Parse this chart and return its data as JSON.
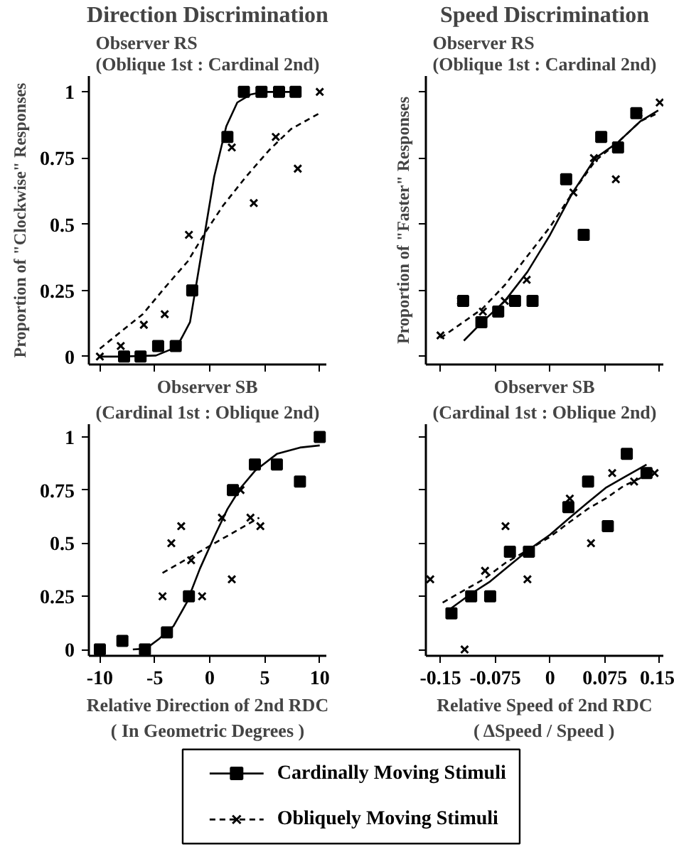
{
  "chart_data": [
    {
      "type": "scatter",
      "title": "Direction Discrimination",
      "subtitle": "Observer RS (Oblique 1st : Cardinal 2nd)",
      "ylabel": "Proportion of \"Clockwise\" Responses",
      "xlim": [
        -11,
        10.6
      ],
      "ylim": [
        -0.03,
        1.06
      ],
      "xticks": [
        -10,
        -5,
        0,
        5,
        10
      ],
      "yticks": [
        0,
        0.25,
        0.5,
        0.75,
        1
      ],
      "tick_labels": "y",
      "series": [
        {
          "marker": "square",
          "color": "#000000",
          "x": [
            -7.8,
            -6.3,
            -4.7,
            -3.1,
            -1.6,
            1.6,
            3.1,
            4.7,
            6.3,
            7.8
          ],
          "values": [
            0,
            0,
            0.04,
            0.04,
            0.25,
            0.83,
            1,
            1,
            1,
            1
          ]
        },
        {
          "marker": "cross",
          "color": "#000000",
          "x": [
            -10,
            -8.1,
            -6,
            -4.1,
            -1.9,
            2,
            4,
            6,
            8,
            10
          ],
          "values": [
            0,
            0.04,
            0.12,
            0.16,
            0.46,
            0.79,
            0.58,
            0.83,
            0.71,
            1
          ]
        },
        {
          "type": "line",
          "line_style": "solid",
          "color": "#000000",
          "x": [
            -10,
            -8.2,
            -4.9,
            -3.0,
            -1.8,
            -0.8,
            0.4,
            1.5,
            2.5,
            3.7,
            4.9,
            7.8
          ],
          "values": [
            0,
            0,
            0.004,
            0.036,
            0.13,
            0.38,
            0.68,
            0.87,
            0.96,
            0.99,
            1,
            1
          ]
        },
        {
          "type": "line",
          "line_style": "dashed",
          "color": "#000000",
          "x": [
            -10,
            -8.2,
            -6.1,
            -4.1,
            -2,
            -0.4,
            1.2,
            3.3,
            5.4,
            7.4,
            10
          ],
          "values": [
            0.03,
            0.09,
            0.16,
            0.26,
            0.36,
            0.47,
            0.57,
            0.68,
            0.78,
            0.86,
            0.92
          ]
        }
      ]
    },
    {
      "type": "scatter",
      "title": "Speed Discrimination",
      "subtitle": "Observer RS (Oblique 1st : Cardinal 2nd)",
      "ylabel": "Proportion of \"Faster\" Responses",
      "xlim": [
        -0.17,
        0.155
      ],
      "ylim": [
        -0.03,
        1.06
      ],
      "xticks": [
        -0.15,
        -0.075,
        0,
        0.075,
        0.15
      ],
      "yticks": [
        0,
        0.25,
        0.5,
        0.75,
        1
      ],
      "tick_labels": false,
      "series": [
        {
          "marker": "square",
          "color": "#000000",
          "x": [
            -0.119,
            -0.094,
            -0.071,
            -0.048,
            -0.024,
            0.022,
            0.046,
            0.07,
            0.093,
            0.118
          ],
          "values": [
            0.21,
            0.13,
            0.17,
            0.21,
            0.21,
            0.67,
            0.46,
            0.83,
            0.79,
            0.92
          ]
        },
        {
          "marker": "cross",
          "color": "#000000",
          "x": [
            -0.15,
            -0.122,
            -0.092,
            -0.062,
            -0.032,
            0.032,
            0.06,
            0.09,
            0.121,
            0.15
          ],
          "values": [
            0.08,
            0.21,
            0.17,
            0.21,
            0.29,
            0.62,
            0.75,
            0.67,
            0.92,
            0.96
          ]
        },
        {
          "type": "line",
          "line_style": "solid",
          "color": "#000000",
          "x": [
            -0.118,
            -0.093,
            -0.062,
            -0.031,
            0,
            0.031,
            0.062,
            0.093,
            0.124,
            0.148
          ],
          "values": [
            0.06,
            0.13,
            0.21,
            0.32,
            0.46,
            0.62,
            0.75,
            0.81,
            0.89,
            0.93
          ]
        },
        {
          "type": "line",
          "line_style": "dashed",
          "color": "#000000",
          "x": [
            -0.15,
            -0.124,
            -0.093,
            -0.062,
            -0.031,
            0,
            0.031,
            0.062,
            0.093,
            0.124,
            0.148
          ],
          "values": [
            0.07,
            0.12,
            0.18,
            0.27,
            0.38,
            0.49,
            0.62,
            0.74,
            0.81,
            0.89,
            0.92
          ]
        }
      ]
    },
    {
      "type": "scatter",
      "title": "Observer SB",
      "subtitle": "(Cardinal 1st : Oblique 2nd)",
      "xlabel": "Relative Direction of 2nd RDC ( In Geometric Degrees )",
      "xlim": [
        -11,
        10.6
      ],
      "ylim": [
        -0.03,
        1.06
      ],
      "xticks": [
        -10,
        -5,
        0,
        5,
        10
      ],
      "yticks": [
        0,
        0.25,
        0.5,
        0.75,
        1
      ],
      "legend": "bottom",
      "series": [
        {
          "marker": "square",
          "color": "#000000",
          "x": [
            -10,
            -7.95,
            -5.9,
            -3.9,
            -1.9,
            2.1,
            4.1,
            6.1,
            8.2,
            10
          ],
          "values": [
            0,
            0.04,
            0,
            0.08,
            0.25,
            0.75,
            0.87,
            0.87,
            0.79,
            1
          ]
        },
        {
          "marker": "cross",
          "color": "#000000",
          "x": [
            -4.3,
            -3.5,
            -2.6,
            -1.7,
            -0.7,
            1.1,
            2,
            2.8,
            3.7,
            4.6
          ],
          "values": [
            0.25,
            0.5,
            0.58,
            0.42,
            0.25,
            0.62,
            0.33,
            0.75,
            0.62,
            0.58
          ]
        },
        {
          "type": "line",
          "name": "Cardinally Moving Stimuli",
          "line_style": "solid",
          "color": "#000000",
          "x": [
            -7,
            -5.8,
            -4.6,
            -3.3,
            -2.1,
            -0.9,
            0.4,
            1.6,
            2.8,
            4.1,
            6.1,
            8.2,
            10
          ],
          "values": [
            0,
            0.004,
            0.05,
            0.11,
            0.22,
            0.38,
            0.53,
            0.66,
            0.76,
            0.84,
            0.92,
            0.95,
            0.96
          ]
        },
        {
          "type": "line",
          "name": "Obliquely Moving Stimuli",
          "line_style": "dashed",
          "color": "#000000",
          "x": [
            -4.3,
            0.1,
            4.5
          ],
          "values": [
            0.36,
            0.49,
            0.62
          ]
        }
      ]
    },
    {
      "type": "scatter",
      "title": "Observer SB",
      "subtitle": "(Cardinal 1st : Oblique 2nd)",
      "xlabel": "Relative Speed of 2nd RDC ( ΔSpeed / Speed )",
      "xlim": [
        -0.17,
        0.155
      ],
      "ylim": [
        -0.03,
        1.06
      ],
      "xticks": [
        -0.15,
        -0.075,
        0,
        0.075,
        0.15
      ],
      "yticks": [
        0,
        0.25,
        0.5,
        0.75,
        1
      ],
      "tick_labels": "x",
      "series": [
        {
          "marker": "square",
          "color": "#000000",
          "x": [
            -0.135,
            -0.108,
            -0.082,
            -0.055,
            -0.029,
            0.025,
            0.052,
            0.079,
            0.105,
            0.132
          ],
          "values": [
            0.17,
            0.25,
            0.25,
            0.46,
            0.46,
            0.67,
            0.79,
            0.58,
            0.92,
            0.83
          ]
        },
        {
          "marker": "cross",
          "color": "#000000",
          "x": [
            -0.164,
            -0.117,
            -0.089,
            -0.061,
            -0.031,
            0.027,
            0.056,
            0.085,
            0.115,
            0.143
          ],
          "values": [
            0.33,
            0,
            0.37,
            0.58,
            0.33,
            0.71,
            0.5,
            0.83,
            0.79,
            0.83
          ]
        },
        {
          "type": "line",
          "line_style": "solid",
          "color": "#000000",
          "x": [
            -0.135,
            -0.109,
            -0.082,
            -0.054,
            -0.029,
            0,
            0.027,
            0.051,
            0.076,
            0.101,
            0.132
          ],
          "values": [
            0.195,
            0.26,
            0.32,
            0.4,
            0.47,
            0.54,
            0.62,
            0.69,
            0.76,
            0.81,
            0.87
          ]
        },
        {
          "type": "line",
          "line_style": "dashed",
          "color": "#000000",
          "x": [
            -0.147,
            -0.122,
            -0.091,
            -0.06,
            -0.029,
            0,
            0.027,
            0.051,
            0.076,
            0.101,
            0.126
          ],
          "values": [
            0.22,
            0.27,
            0.33,
            0.41,
            0.47,
            0.53,
            0.6,
            0.66,
            0.71,
            0.77,
            0.81
          ]
        }
      ]
    }
  ]
}
